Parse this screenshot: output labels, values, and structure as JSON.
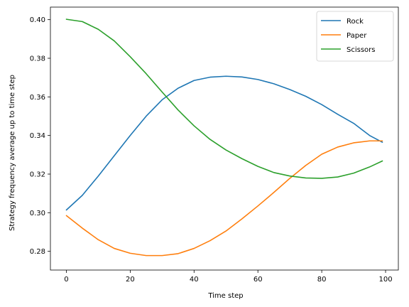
{
  "chart_data": {
    "type": "line",
    "title": "",
    "xlabel": "Time step",
    "ylabel": "Strategy frequency average up to time step",
    "xlim": [
      -5,
      104
    ],
    "ylim": [
      0.2703,
      0.4065
    ],
    "xticks": [
      0,
      20,
      40,
      60,
      80,
      100
    ],
    "yticks": [
      0.28,
      0.3,
      0.32,
      0.34,
      0.36,
      0.38,
      0.4
    ],
    "grid": false,
    "legend": "top-right",
    "x": [
      0,
      5,
      10,
      15,
      20,
      25,
      30,
      35,
      40,
      45,
      50,
      55,
      60,
      65,
      70,
      75,
      80,
      85,
      90,
      95,
      99
    ],
    "series": [
      {
        "name": "Rock",
        "color": "#1f77b4",
        "values": [
          0.3014,
          0.309,
          0.319,
          0.3295,
          0.34,
          0.35,
          0.3585,
          0.3645,
          0.3685,
          0.3702,
          0.3707,
          0.3703,
          0.369,
          0.3668,
          0.3638,
          0.3603,
          0.356,
          0.351,
          0.3463,
          0.34,
          0.3365
        ]
      },
      {
        "name": "Paper",
        "color": "#ff7f0e",
        "values": [
          0.2985,
          0.292,
          0.286,
          0.2815,
          0.279,
          0.2778,
          0.2778,
          0.2788,
          0.2815,
          0.2855,
          0.2905,
          0.2968,
          0.3035,
          0.3105,
          0.3178,
          0.3245,
          0.3303,
          0.334,
          0.3362,
          0.3372,
          0.3372
        ]
      },
      {
        "name": "Scissors",
        "color": "#2ca02c",
        "values": [
          0.4002,
          0.399,
          0.395,
          0.389,
          0.3808,
          0.372,
          0.3625,
          0.3532,
          0.345,
          0.338,
          0.3325,
          0.328,
          0.324,
          0.3208,
          0.319,
          0.318,
          0.3178,
          0.3185,
          0.3205,
          0.3237,
          0.3268
        ]
      }
    ]
  }
}
